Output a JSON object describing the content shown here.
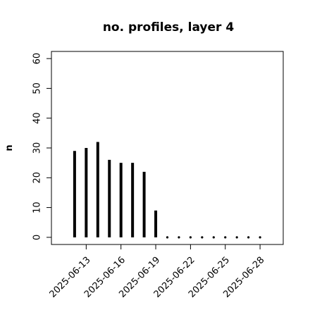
{
  "chart_data": {
    "type": "histline",
    "title": "no. profiles, layer 4",
    "y_label": "n",
    "x": [
      "2025-06-12",
      "2025-06-13",
      "2025-06-14",
      "2025-06-15",
      "2025-06-16",
      "2025-06-17",
      "2025-06-18",
      "2025-06-19",
      "2025-06-20",
      "2025-06-21",
      "2025-06-22",
      "2025-06-23",
      "2025-06-24",
      "2025-06-25",
      "2025-06-26",
      "2025-06-27",
      "2025-06-28"
    ],
    "values": [
      29,
      30,
      32,
      26,
      25,
      25,
      22,
      9,
      0,
      0,
      0,
      0,
      0,
      0,
      0,
      0,
      0
    ],
    "color": "#000000",
    "xlim": [
      "2025-06-10",
      "2025-06-30"
    ],
    "xticks": [
      "2025-06-13",
      "2025-06-16",
      "2025-06-19",
      "2025-06-22",
      "2025-06-25",
      "2025-06-28"
    ],
    "xtick_colors": [
      "#000000",
      "#000000",
      "#228b22",
      "#000000",
      "#000000",
      "#000000"
    ],
    "ylim": [
      -2.4,
      62.4
    ],
    "yticks": [
      0,
      10,
      20,
      30,
      40,
      50,
      60
    ]
  }
}
